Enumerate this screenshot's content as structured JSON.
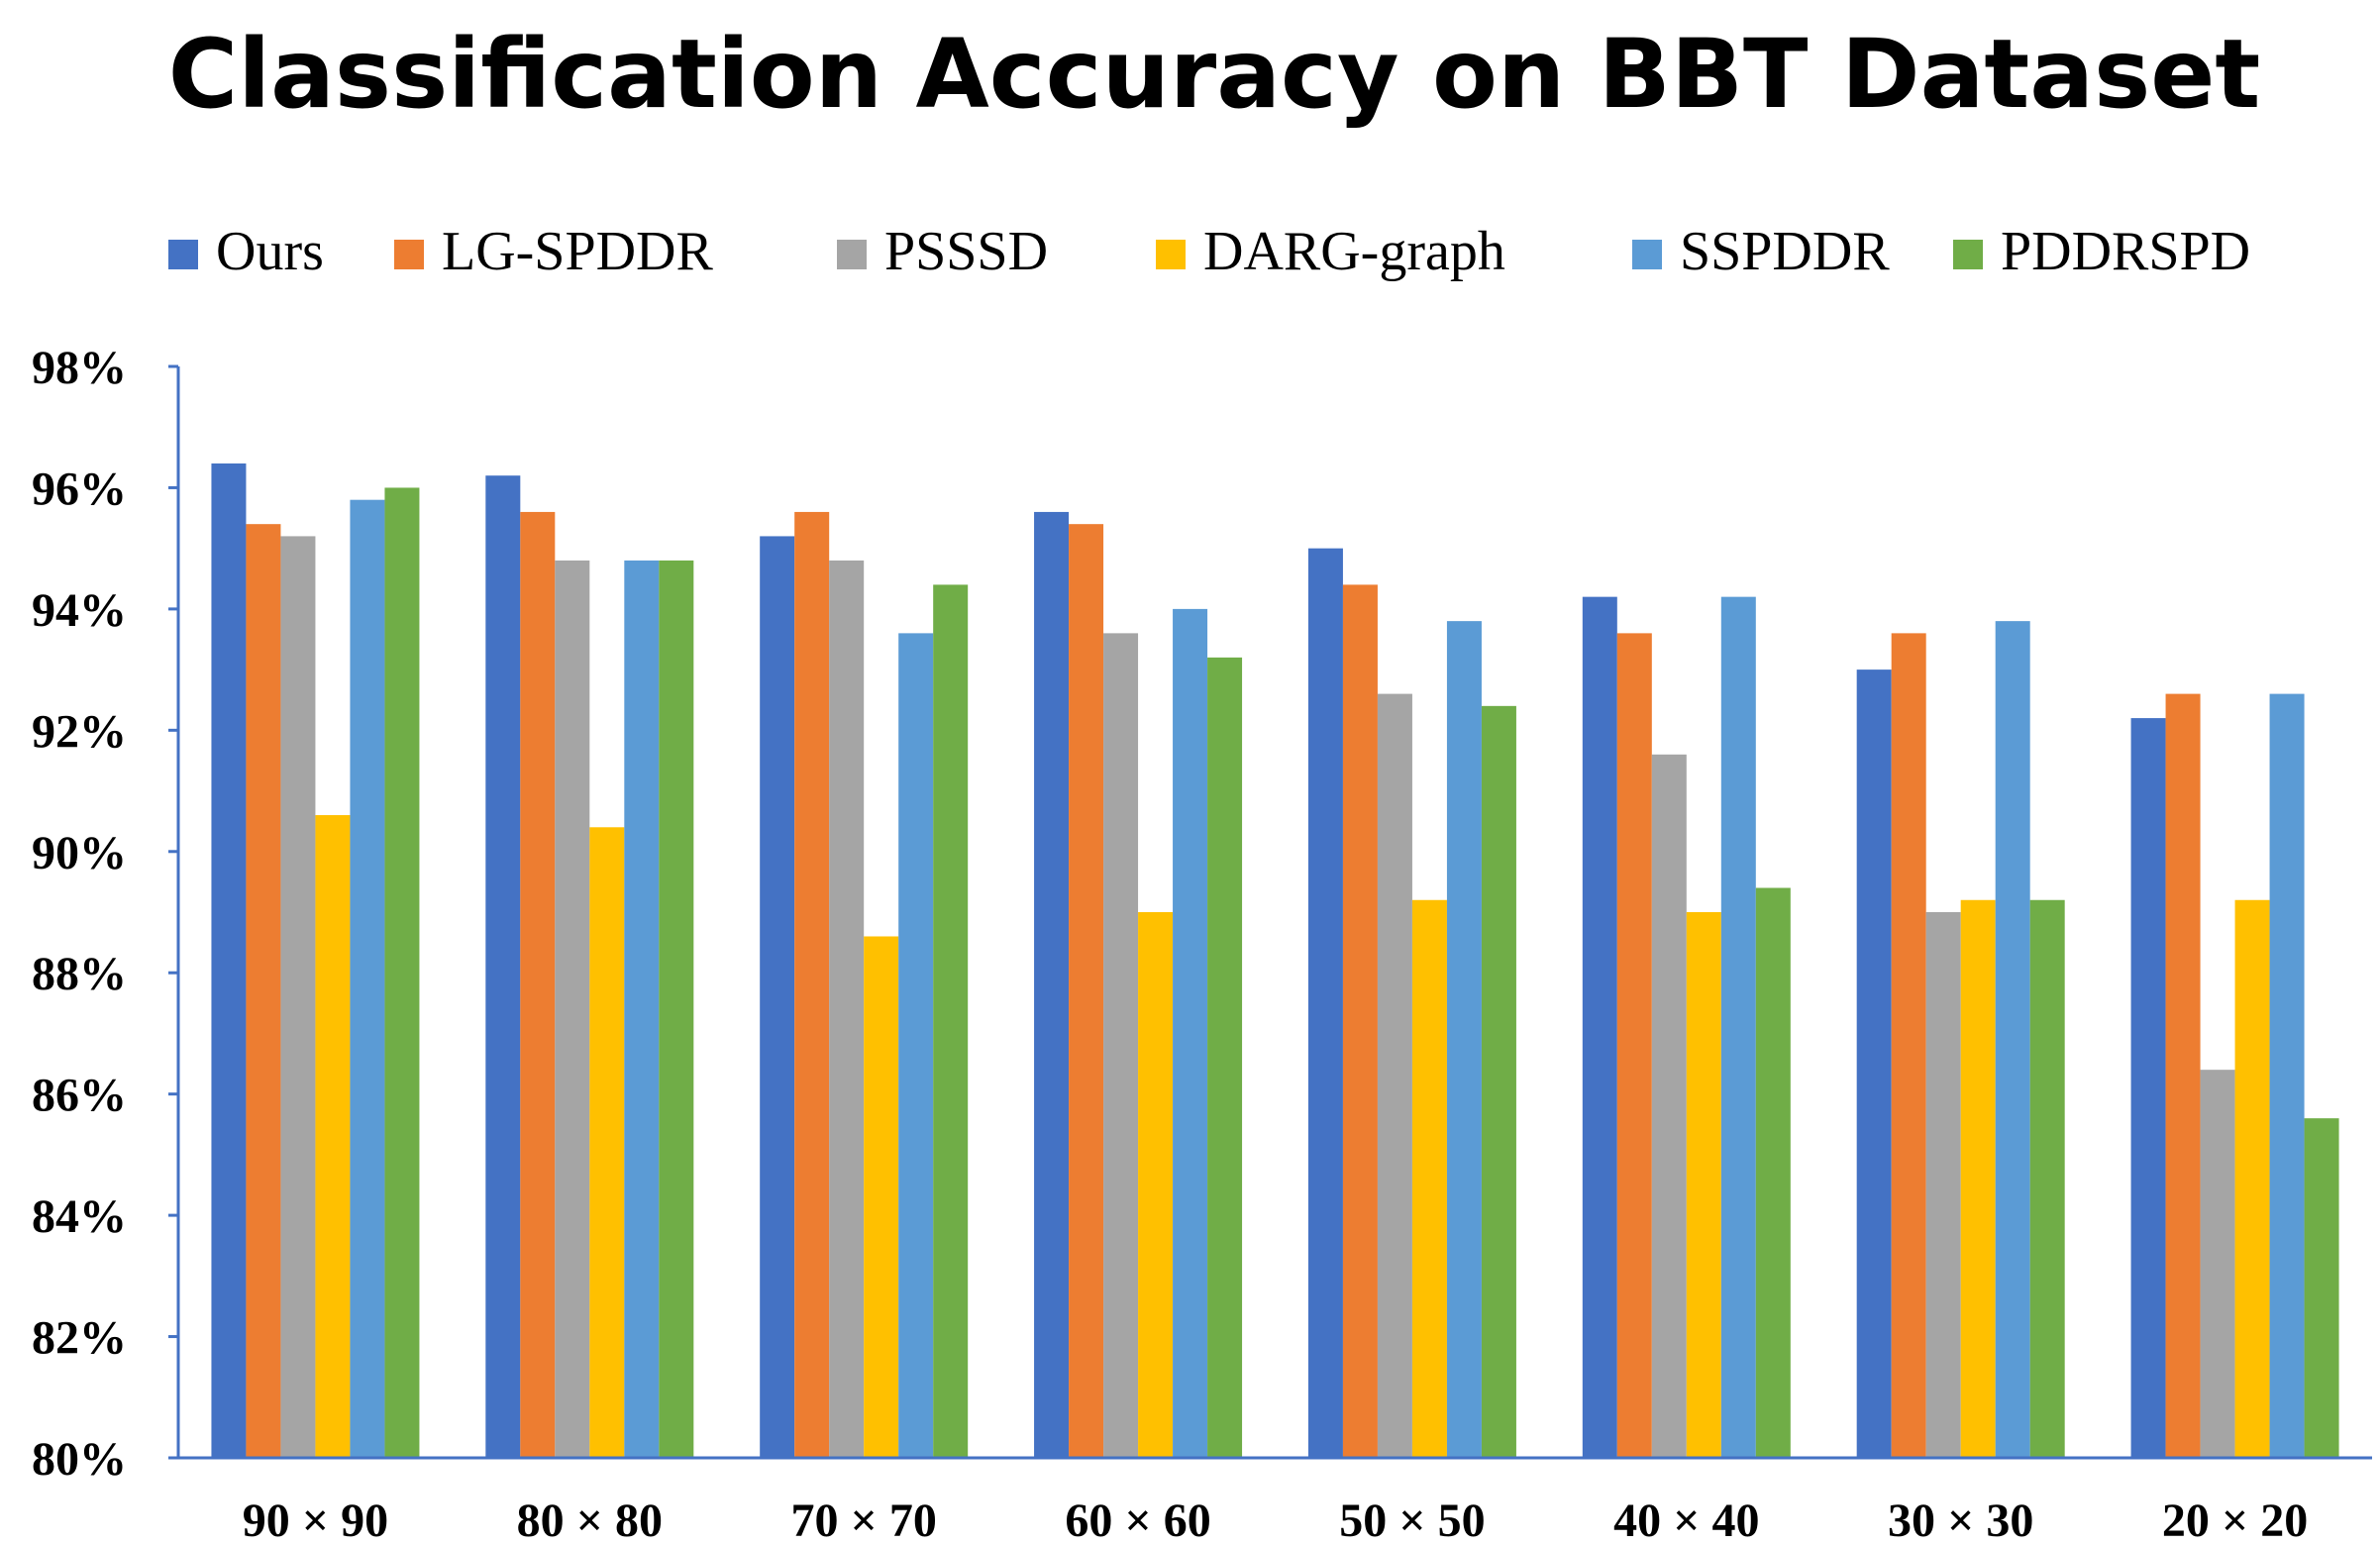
{
  "chart_data": {
    "type": "bar",
    "title": "Classification Accuracy on BBT Dataset",
    "xlabel": "",
    "ylabel": "",
    "ylim": [
      80,
      98
    ],
    "ytick_step": 2,
    "ytick_labels": [
      "80%",
      "82%",
      "84%",
      "86%",
      "88%",
      "90%",
      "92%",
      "94%",
      "96%",
      "98%"
    ],
    "legend_position": "top",
    "grid": false,
    "categories": [
      "90 × 90",
      "80 × 80",
      "70 × 70",
      "60 × 60",
      "50 × 50",
      "40 × 40",
      "30 × 30",
      "20 × 20"
    ],
    "series": [
      {
        "name": "Ours",
        "color": "#4472C4",
        "values": [
          96.4,
          96.2,
          95.2,
          95.6,
          95.0,
          94.2,
          93.0,
          92.2
        ]
      },
      {
        "name": "LG-SPDDR",
        "color": "#ED7D31",
        "values": [
          95.4,
          95.6,
          95.6,
          95.4,
          94.4,
          93.6,
          93.6,
          92.6
        ]
      },
      {
        "name": "PSSSD",
        "color": "#A5A5A5",
        "values": [
          95.2,
          94.8,
          94.8,
          93.6,
          92.6,
          91.6,
          89.0,
          86.4
        ]
      },
      {
        "name": "DARG-graph",
        "color": "#FFC000",
        "values": [
          90.6,
          90.4,
          88.6,
          89.0,
          89.2,
          89.0,
          89.2,
          89.2
        ]
      },
      {
        "name": "SSPDDR",
        "color": "#5B9BD5",
        "values": [
          95.8,
          94.8,
          93.6,
          94.0,
          93.8,
          94.2,
          93.8,
          92.6
        ]
      },
      {
        "name": "PDDRSPD",
        "color": "#70AD47",
        "values": [
          96.0,
          94.8,
          94.4,
          93.2,
          92.4,
          89.4,
          89.2,
          85.6
        ]
      }
    ]
  }
}
